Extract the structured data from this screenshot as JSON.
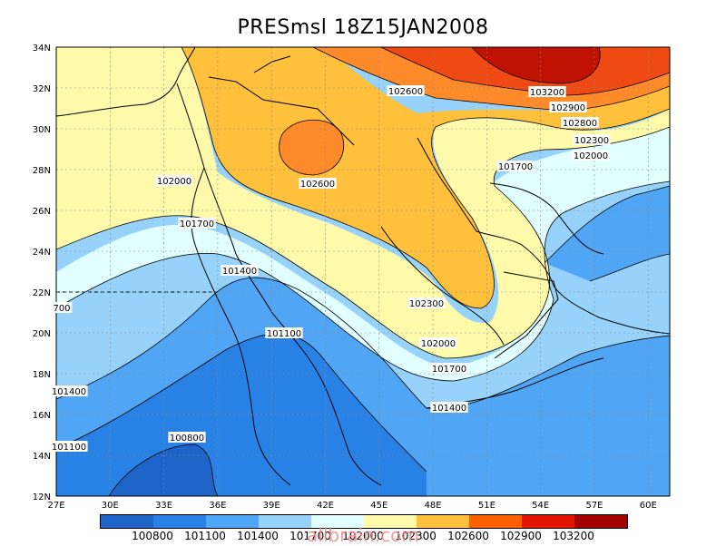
{
  "title": "PRESmsl  18Z15JAN2008",
  "lon_ticks": [
    "27E",
    "30E",
    "33E",
    "36E",
    "39E",
    "42E",
    "45E",
    "48E",
    "51E",
    "54E",
    "57E",
    "60E"
  ],
  "lat_ticks": [
    "12N",
    "14N",
    "16N",
    "18N",
    "20N",
    "22N",
    "24N",
    "26N",
    "28N",
    "30N",
    "32N",
    "34N"
  ],
  "contour_labels": [
    "102600",
    "103200",
    "102900",
    "102800",
    "102300",
    "102000",
    "101700",
    "102600",
    "102000",
    "101700",
    "101400",
    "101100",
    "102300",
    "102000",
    "101700",
    "101400",
    "700",
    "101400",
    "101100",
    "100800"
  ],
  "legend": {
    "labels": [
      "100800",
      "101100",
      "101400",
      "101700",
      "102000",
      "102300",
      "102600",
      "102900",
      "103200"
    ],
    "colors": [
      "#1e64c8",
      "#2882e6",
      "#50a5f5",
      "#96d2fa",
      "#e1ffff",
      "#fffaaa",
      "#ffc03c",
      "#ff6000",
      "#e11400",
      "#a50000"
    ]
  },
  "fill_colors": {
    "c1": "#1e64c8",
    "c2": "#2882e6",
    "c3": "#50a5f5",
    "c4": "#96d2fa",
    "c5": "#e1ffff",
    "c6": "#fffaaa",
    "c7": "#ffe178",
    "c8": "#ffc03c",
    "c9": "#ffa028",
    "c10": "#ff6000",
    "c11": "#e11400",
    "c12": "#a50000"
  },
  "watermark": "allbrain.com"
}
